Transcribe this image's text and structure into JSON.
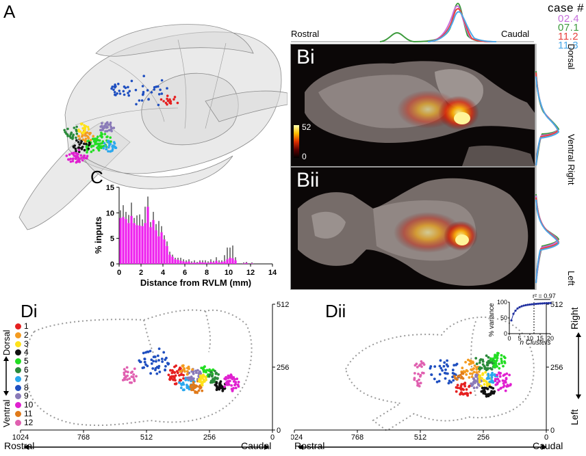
{
  "panels": {
    "a": "A",
    "bi": "Bi",
    "bii": "Bii",
    "c": "C",
    "di": "Di",
    "dii": "Dii"
  },
  "orientation": {
    "rostral": "Rostral",
    "caudal": "Caudal",
    "dorsal": "Dorsal",
    "ventral": "Ventral",
    "right": "Right",
    "left": "Left",
    "ventral_right": "Ventral Right"
  },
  "case_legend": {
    "title": "case #",
    "entries": [
      {
        "label": "02.4",
        "color": "#c76fdc"
      },
      {
        "label": "07.1",
        "color": "#3c9a3c"
      },
      {
        "label": "11.2",
        "color": "#e8423e"
      },
      {
        "label": "11.3",
        "color": "#4aa8e8"
      }
    ]
  },
  "colorbar": {
    "max": "52",
    "min": "0"
  },
  "chart_data": [
    {
      "type": "bar",
      "panel": "C",
      "ylabel": "% inputs",
      "xlabel": "Distance from RVLM (mm)",
      "xlim": [
        0,
        14
      ],
      "ylim": [
        0,
        15
      ],
      "x_ticks": [
        "0",
        "2",
        "4",
        "6",
        "8",
        "10",
        "12",
        "14"
      ],
      "y_ticks": [
        "0",
        "5",
        "10",
        "15"
      ],
      "bar_width": 0.25,
      "x": [
        0.25,
        0.5,
        0.75,
        1.0,
        1.25,
        1.5,
        1.75,
        2.0,
        2.25,
        2.5,
        2.75,
        3.0,
        3.25,
        3.5,
        3.75,
        4.0,
        4.25,
        4.5,
        4.75,
        5.0,
        5.25,
        5.5,
        5.75,
        6.0,
        6.25,
        6.5,
        6.75,
        7.0,
        7.25,
        7.5,
        7.75,
        8.0,
        8.25,
        8.5,
        8.75,
        9.0,
        9.25,
        9.5,
        9.75,
        10.0,
        10.25,
        10.5,
        10.75,
        11.0,
        11.25,
        11.5,
        11.75,
        12.0,
        12.25,
        12.5
      ],
      "values": [
        9.0,
        9.2,
        8.8,
        8.0,
        9.4,
        8.0,
        7.6,
        7.5,
        7.4,
        8.0,
        11.2,
        7.2,
        8.6,
        6.6,
        5.4,
        6.2,
        4.8,
        3.5,
        1.8,
        1.4,
        0.9,
        0.8,
        0.6,
        0.5,
        0.4,
        0.5,
        0.2,
        0.3,
        0.2,
        0.4,
        0.3,
        0.3,
        0.2,
        0.4,
        0.3,
        0.6,
        0.3,
        0.4,
        0.5,
        0.9,
        1.2,
        1.1,
        0.7,
        0.0,
        0.0,
        0.1,
        0.2,
        0.0,
        0.1,
        0.0
      ],
      "errors": [
        1.5,
        2.3,
        1.4,
        1.6,
        2.6,
        1.0,
        1.9,
        2.2,
        1.3,
        3.2,
        2.0,
        1.0,
        1.6,
        1.2,
        3.0,
        1.2,
        0.8,
        0.9,
        0.6,
        0.4,
        0.3,
        0.4,
        0.6,
        0.4,
        0.3,
        0.4,
        0.3,
        0.4,
        0.2,
        0.3,
        0.4,
        0.4,
        0.3,
        0.5,
        0.3,
        0.7,
        0.4,
        0.3,
        1.2,
        2.3,
        2.0,
        2.5,
        0.6,
        0.0,
        0.0,
        0.2,
        0.2,
        0.0,
        0.2,
        0.0
      ],
      "bar_color": "#ee1fee"
    },
    {
      "type": "line",
      "panel": "Dii inset",
      "ylabel": "% variance",
      "xlabel": "n Clusters",
      "xlim": [
        0,
        20
      ],
      "ylim": [
        0,
        100
      ],
      "x_ticks": [
        "0",
        "5",
        "10",
        "15",
        "20"
      ],
      "y_ticks": [
        "0",
        "50",
        "100"
      ],
      "annotation": "r² = 0.97",
      "selected_k": 12,
      "x": [
        1,
        2,
        3,
        4,
        5,
        6,
        7,
        8,
        9,
        10,
        11,
        12,
        13,
        14,
        15,
        16,
        17,
        18,
        19,
        20
      ],
      "values": [
        42,
        63,
        73,
        80,
        84,
        87,
        89,
        90.5,
        91.5,
        92.5,
        93.3,
        94,
        94.6,
        95.1,
        95.6,
        96,
        96.4,
        96.8,
        97.1,
        97.4
      ]
    }
  ],
  "cluster_legend": [
    {
      "label": "1",
      "color": "#e52020"
    },
    {
      "label": "2",
      "color": "#f49b20"
    },
    {
      "label": "3",
      "color": "#ffe21a"
    },
    {
      "label": "4",
      "color": "#111111"
    },
    {
      "label": "5",
      "color": "#22dd22"
    },
    {
      "label": "6",
      "color": "#2a8a3a"
    },
    {
      "label": "7",
      "color": "#2aa8ee"
    },
    {
      "label": "8",
      "color": "#1f4fc0"
    },
    {
      "label": "9",
      "color": "#8a7ab8"
    },
    {
      "label": "10",
      "color": "#e020d0"
    },
    {
      "label": "11",
      "color": "#e07a1a"
    },
    {
      "label": "12",
      "color": "#e060b0"
    }
  ],
  "scatter_axes": {
    "x_ticks": [
      "1024",
      "768",
      "512",
      "256",
      "0"
    ],
    "y_ticks": [
      "512",
      "256",
      "0"
    ]
  }
}
